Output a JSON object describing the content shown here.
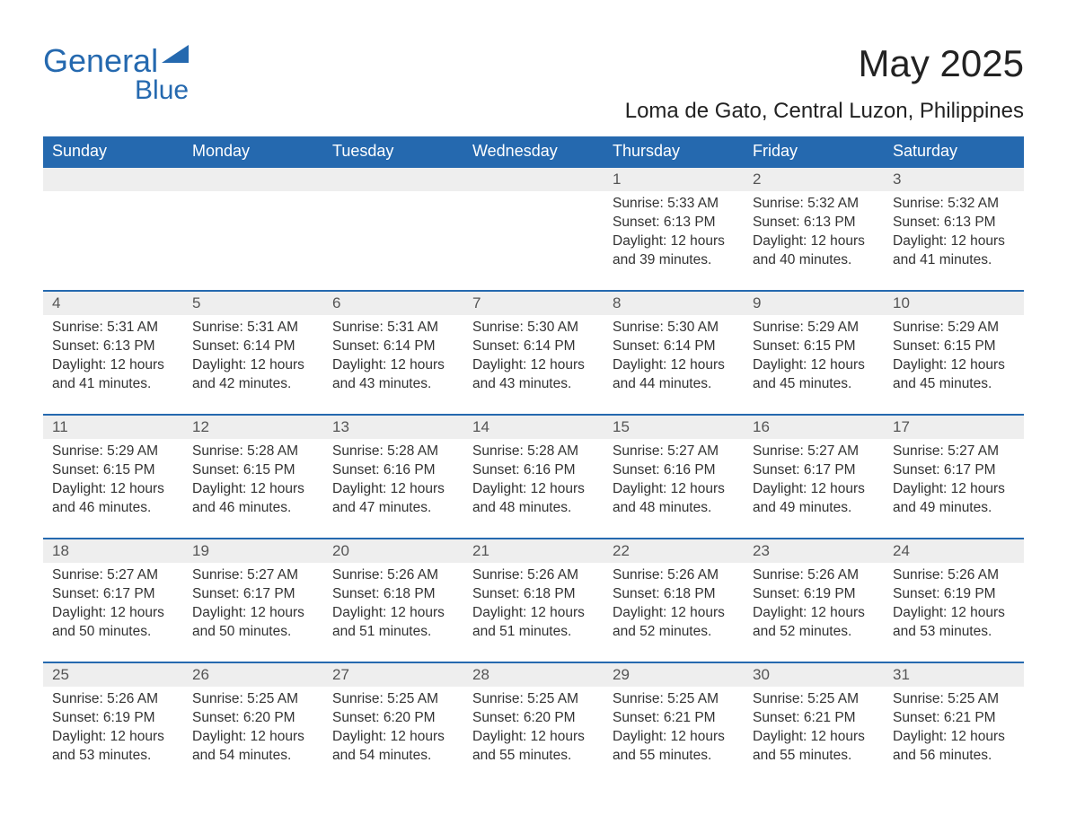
{
  "logo": {
    "general": "General",
    "blue": "Blue",
    "triangle_color": "#2569af"
  },
  "title": "May 2025",
  "location": "Loma de Gato, Central Luzon, Philippines",
  "colors": {
    "header_bg": "#2569af",
    "header_text": "#ffffff",
    "daynum_bg": "#eeeeee",
    "daynum_border": "#2569af",
    "body_text": "#333333",
    "page_bg": "#ffffff"
  },
  "weekdays": [
    "Sunday",
    "Monday",
    "Tuesday",
    "Wednesday",
    "Thursday",
    "Friday",
    "Saturday"
  ],
  "weeks": [
    [
      null,
      null,
      null,
      null,
      {
        "n": "1",
        "sunrise": "5:33 AM",
        "sunset": "6:13 PM",
        "daylight": "12 hours and 39 minutes."
      },
      {
        "n": "2",
        "sunrise": "5:32 AM",
        "sunset": "6:13 PM",
        "daylight": "12 hours and 40 minutes."
      },
      {
        "n": "3",
        "sunrise": "5:32 AM",
        "sunset": "6:13 PM",
        "daylight": "12 hours and 41 minutes."
      }
    ],
    [
      {
        "n": "4",
        "sunrise": "5:31 AM",
        "sunset": "6:13 PM",
        "daylight": "12 hours and 41 minutes."
      },
      {
        "n": "5",
        "sunrise": "5:31 AM",
        "sunset": "6:14 PM",
        "daylight": "12 hours and 42 minutes."
      },
      {
        "n": "6",
        "sunrise": "5:31 AM",
        "sunset": "6:14 PM",
        "daylight": "12 hours and 43 minutes."
      },
      {
        "n": "7",
        "sunrise": "5:30 AM",
        "sunset": "6:14 PM",
        "daylight": "12 hours and 43 minutes."
      },
      {
        "n": "8",
        "sunrise": "5:30 AM",
        "sunset": "6:14 PM",
        "daylight": "12 hours and 44 minutes."
      },
      {
        "n": "9",
        "sunrise": "5:29 AM",
        "sunset": "6:15 PM",
        "daylight": "12 hours and 45 minutes."
      },
      {
        "n": "10",
        "sunrise": "5:29 AM",
        "sunset": "6:15 PM",
        "daylight": "12 hours and 45 minutes."
      }
    ],
    [
      {
        "n": "11",
        "sunrise": "5:29 AM",
        "sunset": "6:15 PM",
        "daylight": "12 hours and 46 minutes."
      },
      {
        "n": "12",
        "sunrise": "5:28 AM",
        "sunset": "6:15 PM",
        "daylight": "12 hours and 46 minutes."
      },
      {
        "n": "13",
        "sunrise": "5:28 AM",
        "sunset": "6:16 PM",
        "daylight": "12 hours and 47 minutes."
      },
      {
        "n": "14",
        "sunrise": "5:28 AM",
        "sunset": "6:16 PM",
        "daylight": "12 hours and 48 minutes."
      },
      {
        "n": "15",
        "sunrise": "5:27 AM",
        "sunset": "6:16 PM",
        "daylight": "12 hours and 48 minutes."
      },
      {
        "n": "16",
        "sunrise": "5:27 AM",
        "sunset": "6:17 PM",
        "daylight": "12 hours and 49 minutes."
      },
      {
        "n": "17",
        "sunrise": "5:27 AM",
        "sunset": "6:17 PM",
        "daylight": "12 hours and 49 minutes."
      }
    ],
    [
      {
        "n": "18",
        "sunrise": "5:27 AM",
        "sunset": "6:17 PM",
        "daylight": "12 hours and 50 minutes."
      },
      {
        "n": "19",
        "sunrise": "5:27 AM",
        "sunset": "6:17 PM",
        "daylight": "12 hours and 50 minutes."
      },
      {
        "n": "20",
        "sunrise": "5:26 AM",
        "sunset": "6:18 PM",
        "daylight": "12 hours and 51 minutes."
      },
      {
        "n": "21",
        "sunrise": "5:26 AM",
        "sunset": "6:18 PM",
        "daylight": "12 hours and 51 minutes."
      },
      {
        "n": "22",
        "sunrise": "5:26 AM",
        "sunset": "6:18 PM",
        "daylight": "12 hours and 52 minutes."
      },
      {
        "n": "23",
        "sunrise": "5:26 AM",
        "sunset": "6:19 PM",
        "daylight": "12 hours and 52 minutes."
      },
      {
        "n": "24",
        "sunrise": "5:26 AM",
        "sunset": "6:19 PM",
        "daylight": "12 hours and 53 minutes."
      }
    ],
    [
      {
        "n": "25",
        "sunrise": "5:26 AM",
        "sunset": "6:19 PM",
        "daylight": "12 hours and 53 minutes."
      },
      {
        "n": "26",
        "sunrise": "5:25 AM",
        "sunset": "6:20 PM",
        "daylight": "12 hours and 54 minutes."
      },
      {
        "n": "27",
        "sunrise": "5:25 AM",
        "sunset": "6:20 PM",
        "daylight": "12 hours and 54 minutes."
      },
      {
        "n": "28",
        "sunrise": "5:25 AM",
        "sunset": "6:20 PM",
        "daylight": "12 hours and 55 minutes."
      },
      {
        "n": "29",
        "sunrise": "5:25 AM",
        "sunset": "6:21 PM",
        "daylight": "12 hours and 55 minutes."
      },
      {
        "n": "30",
        "sunrise": "5:25 AM",
        "sunset": "6:21 PM",
        "daylight": "12 hours and 55 minutes."
      },
      {
        "n": "31",
        "sunrise": "5:25 AM",
        "sunset": "6:21 PM",
        "daylight": "12 hours and 56 minutes."
      }
    ]
  ],
  "labels": {
    "sunrise": "Sunrise: ",
    "sunset": "Sunset: ",
    "daylight": "Daylight: "
  }
}
